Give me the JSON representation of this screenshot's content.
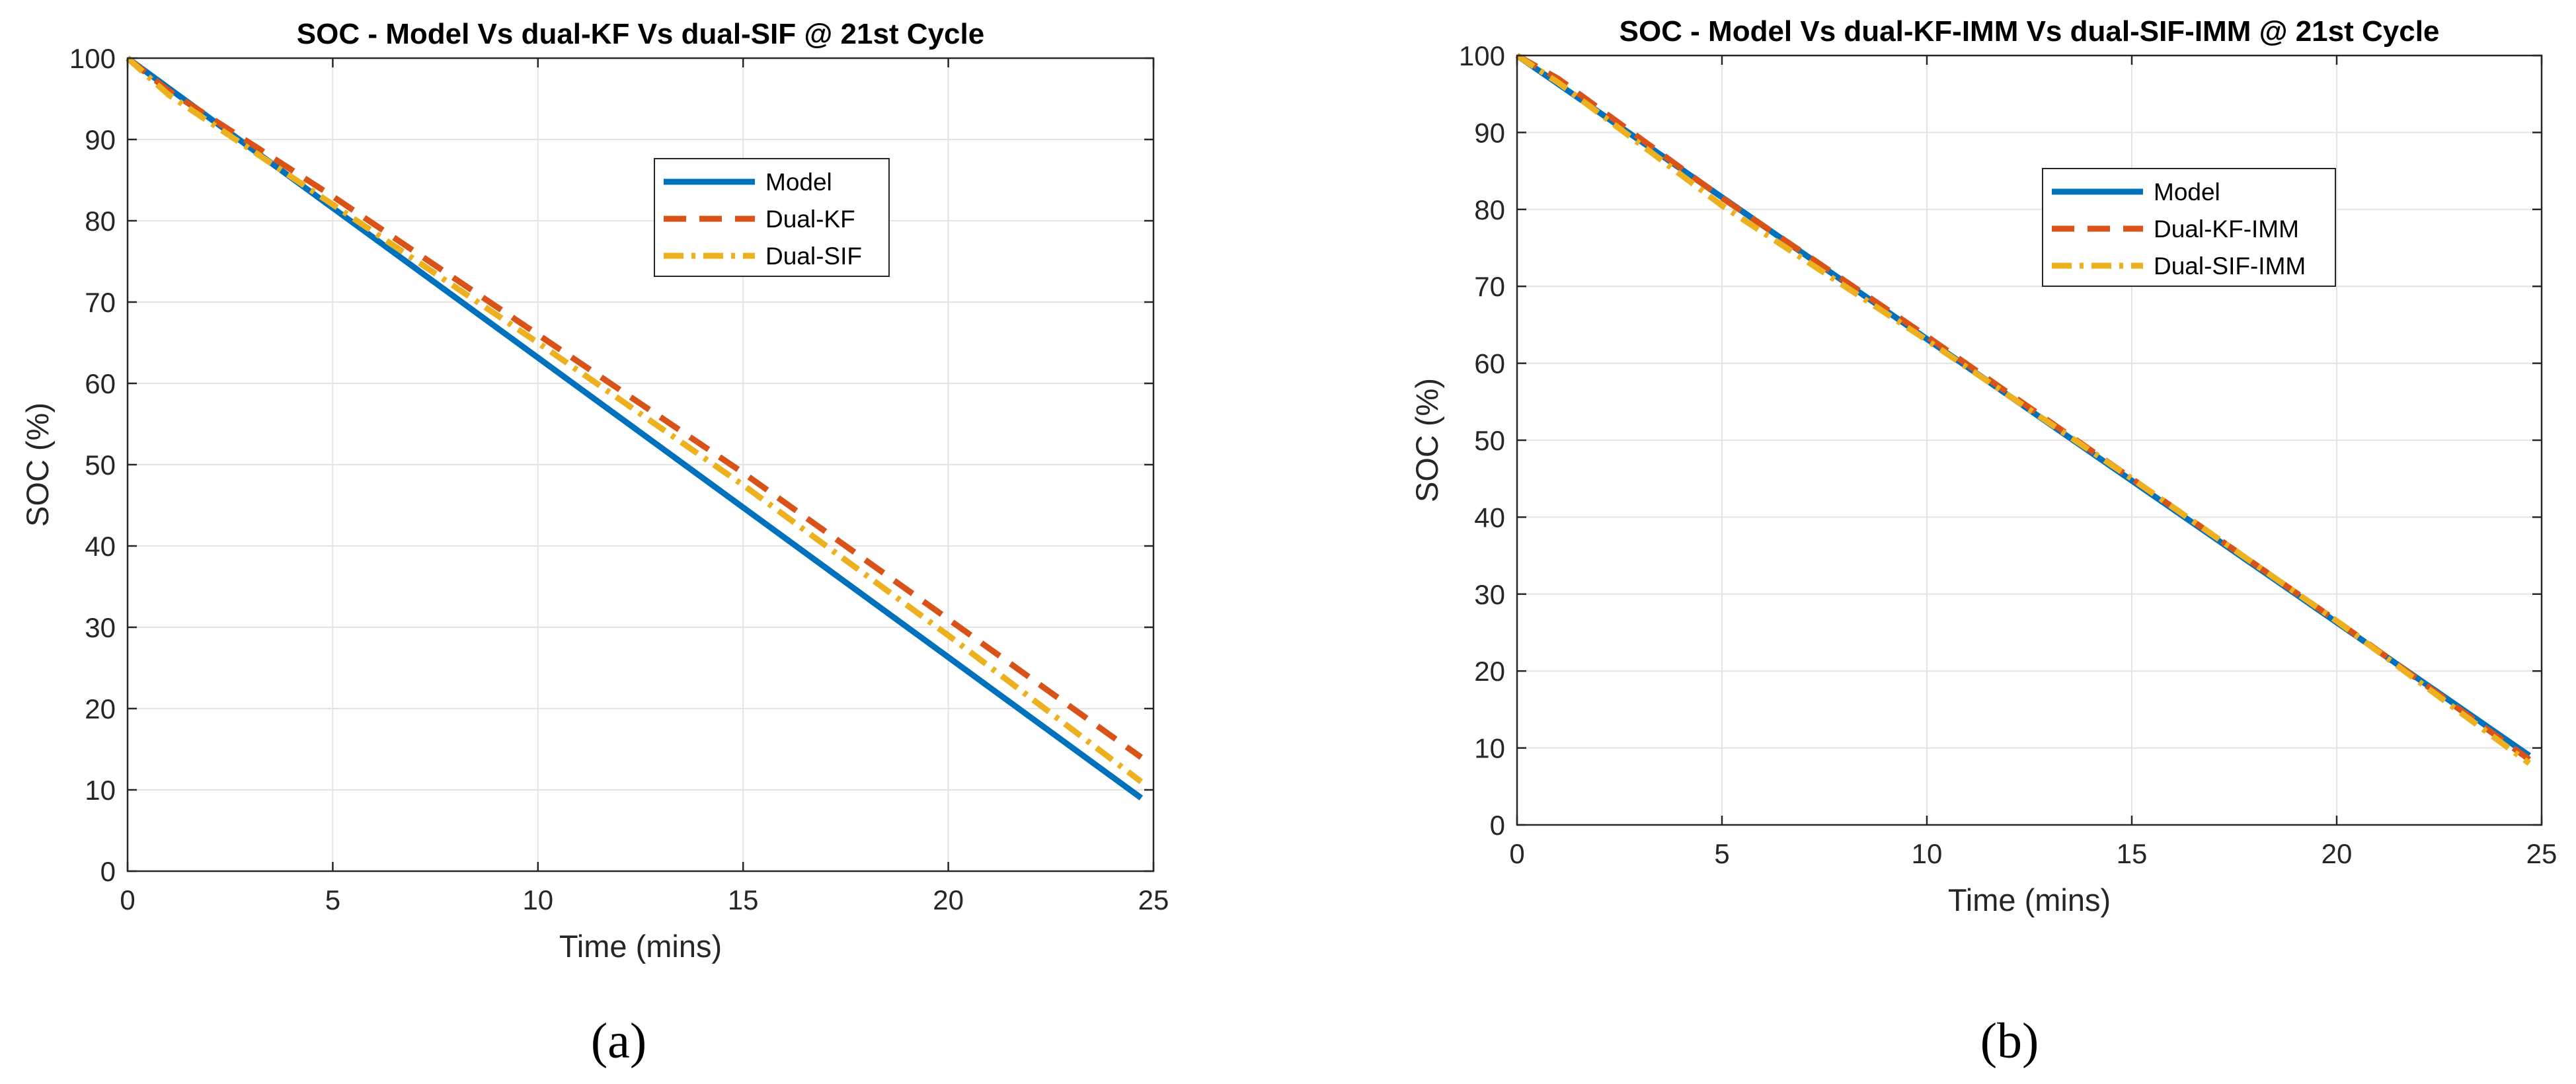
{
  "chart_data": [
    {
      "type": "line",
      "title": "SOC - Model Vs dual-KF Vs dual-SIF @ 21st Cycle",
      "xlabel": "Time (mins)",
      "ylabel": "SOC (%)",
      "xlim": [
        0,
        25
      ],
      "ylim": [
        0,
        100
      ],
      "xticks": [
        0,
        5,
        10,
        15,
        20,
        25
      ],
      "yticks": [
        0,
        10,
        20,
        30,
        40,
        50,
        60,
        70,
        80,
        90,
        100
      ],
      "grid": true,
      "legend_position": "top-right",
      "caption": "(a)",
      "series": [
        {
          "name": "Model",
          "style": "solid",
          "color": "#0072BD",
          "x": [
            0,
            24.7
          ],
          "y": [
            100,
            9
          ]
        },
        {
          "name": "Dual-KF",
          "style": "dashed",
          "color": "#D95319",
          "x": [
            0,
            1,
            5,
            10,
            15,
            20,
            24.7
          ],
          "y": [
            100,
            96,
            83,
            66,
            49,
            31,
            14
          ]
        },
        {
          "name": "Dual-SIF",
          "style": "dashdot",
          "color": "#EDB120",
          "x": [
            0,
            1,
            5,
            10,
            15,
            20,
            24.7
          ],
          "y": [
            100,
            95.5,
            82,
            65,
            47.5,
            29,
            11
          ]
        }
      ]
    },
    {
      "type": "line",
      "title": "SOC - Model Vs dual-KF-IMM Vs dual-SIF-IMM @ 21st Cycle",
      "xlabel": "Time (mins)",
      "ylabel": "SOC (%)",
      "xlim": [
        0,
        25
      ],
      "ylim": [
        0,
        100
      ],
      "xticks": [
        0,
        5,
        10,
        15,
        20,
        25
      ],
      "yticks": [
        0,
        10,
        20,
        30,
        40,
        50,
        60,
        70,
        80,
        90,
        100
      ],
      "grid": true,
      "legend_position": "top-right",
      "caption": "(b)",
      "series": [
        {
          "name": "Model",
          "style": "solid",
          "color": "#0072BD",
          "x": [
            0,
            24.7
          ],
          "y": [
            100,
            9
          ]
        },
        {
          "name": "Dual-KF-IMM",
          "style": "dashed",
          "color": "#D95319",
          "x": [
            0,
            1,
            5,
            10,
            15,
            20,
            24.7
          ],
          "y": [
            100,
            97,
            81.5,
            63.5,
            45,
            26.5,
            8.5
          ]
        },
        {
          "name": "Dual-SIF-IMM",
          "style": "dashdot",
          "color": "#EDB120",
          "x": [
            0,
            1,
            5,
            10,
            15,
            20,
            24.7
          ],
          "y": [
            100,
            96.5,
            80.5,
            63,
            45,
            26.5,
            8
          ]
        }
      ]
    }
  ]
}
